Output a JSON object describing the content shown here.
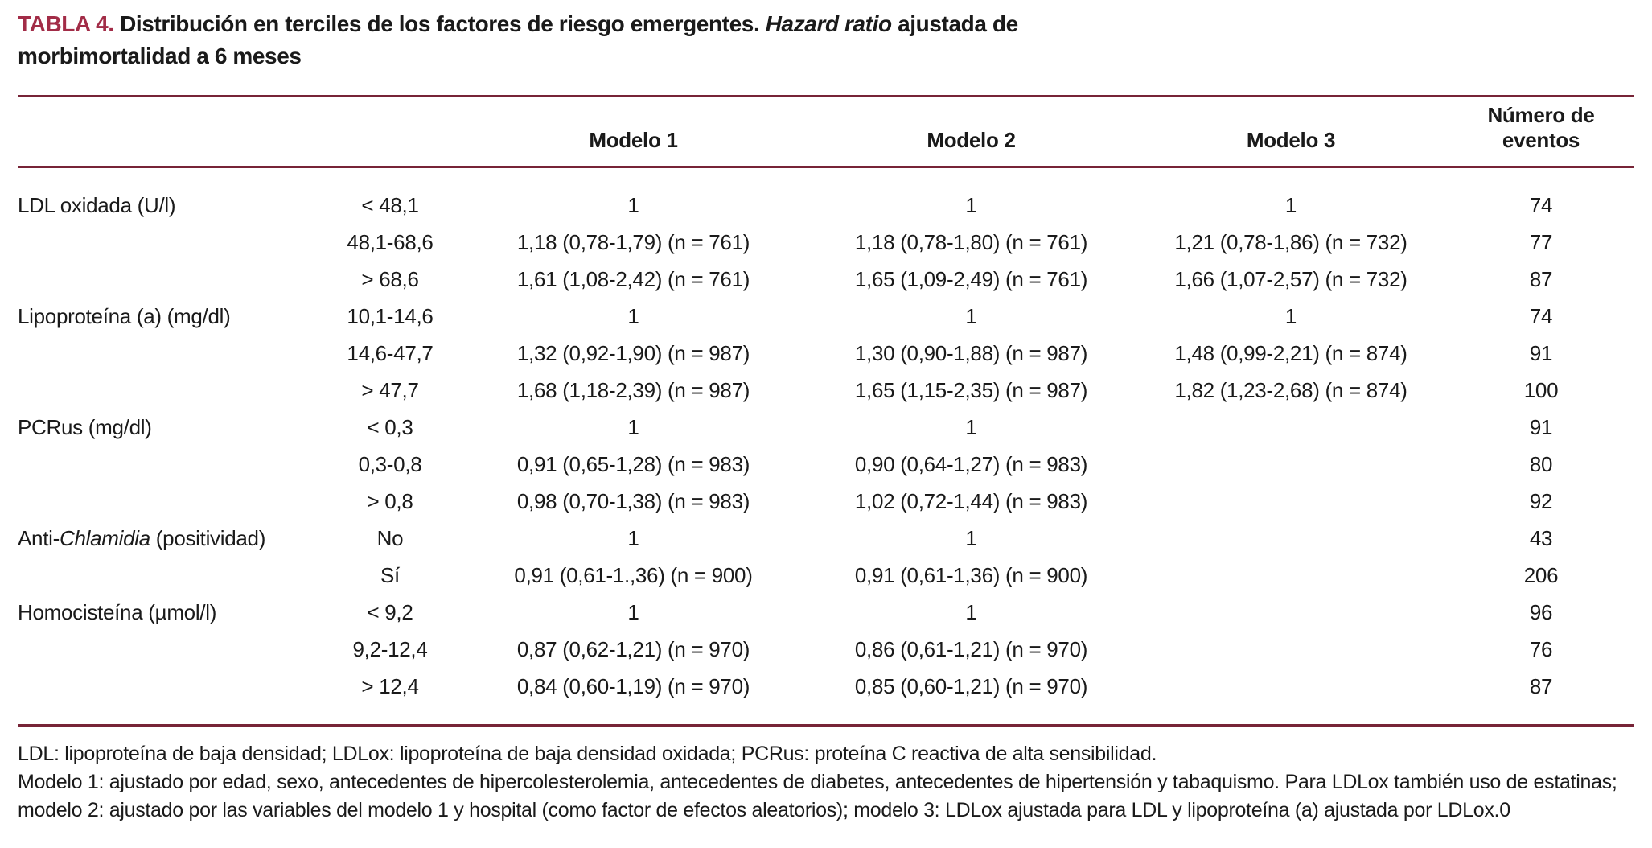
{
  "colors": {
    "accent_red": "#a22c47",
    "rule_red": "#772437"
  },
  "title": {
    "label": "TABLA 4.",
    "text_pre": " Distribución en terciles de los factores de riesgo emergentes. ",
    "text_italic": "Hazard ratio",
    "text_post": " ajustada de morbimortalidad a 6 meses"
  },
  "table": {
    "headers": {
      "factor": "",
      "tercile": "",
      "model1": "Modelo 1",
      "model2": "Modelo 2",
      "model3": "Modelo 3",
      "events": "Número de eventos"
    },
    "rows": [
      {
        "factor_pre": "LDL oxidada (U/l)",
        "factor_italic": "",
        "factor_post": "",
        "tercile": "< 48,1",
        "model1": "1",
        "model2": "1",
        "model3": "1",
        "events": "74"
      },
      {
        "factor_pre": "",
        "factor_italic": "",
        "factor_post": "",
        "tercile": "48,1-68,6",
        "model1": "1,18 (0,78-1,79) (n = 761)",
        "model2": "1,18 (0,78-1,80) (n = 761)",
        "model3": "1,21 (0,78-1,86) (n = 732)",
        "events": "77"
      },
      {
        "factor_pre": "",
        "factor_italic": "",
        "factor_post": "",
        "tercile": "> 68,6",
        "model1": "1,61 (1,08-2,42) (n = 761)",
        "model2": "1,65 (1,09-2,49) (n = 761)",
        "model3": "1,66 (1,07-2,57) (n = 732)",
        "events": "87"
      },
      {
        "factor_pre": "Lipoproteína (a) (mg/dl)",
        "factor_italic": "",
        "factor_post": "",
        "tercile": "10,1-14,6",
        "model1": "1",
        "model2": "1",
        "model3": "1",
        "events": "74"
      },
      {
        "factor_pre": "",
        "factor_italic": "",
        "factor_post": "",
        "tercile": "14,6-47,7",
        "model1": "1,32 (0,92-1,90) (n = 987)",
        "model2": "1,30 (0,90-1,88) (n = 987)",
        "model3": "1,48 (0,99-2,21) (n = 874)",
        "events": "91"
      },
      {
        "factor_pre": "",
        "factor_italic": "",
        "factor_post": "",
        "tercile": "> 47,7",
        "model1": "1,68 (1,18-2,39) (n = 987)",
        "model2": "1,65 (1,15-2,35) (n = 987)",
        "model3": "1,82 (1,23-2,68) (n = 874)",
        "events": "100"
      },
      {
        "factor_pre": "PCRus (mg/dl)",
        "factor_italic": "",
        "factor_post": "",
        "tercile": "< 0,3",
        "model1": "1",
        "model2": "1",
        "model3": "",
        "events": "91"
      },
      {
        "factor_pre": "",
        "factor_italic": "",
        "factor_post": "",
        "tercile": "0,3-0,8",
        "model1": "0,91 (0,65-1,28) (n = 983)",
        "model2": "0,90 (0,64-1,27) (n = 983)",
        "model3": "",
        "events": "80"
      },
      {
        "factor_pre": "",
        "factor_italic": "",
        "factor_post": "",
        "tercile": "> 0,8",
        "model1": "0,98 (0,70-1,38) (n = 983)",
        "model2": "1,02 (0,72-1,44) (n = 983)",
        "model3": "",
        "events": "92"
      },
      {
        "factor_pre": "Anti-",
        "factor_italic": "Chlamidia",
        "factor_post": " (positividad)",
        "tercile": "No",
        "model1": "1",
        "model2": "1",
        "model3": "",
        "events": "43"
      },
      {
        "factor_pre": "",
        "factor_italic": "",
        "factor_post": "",
        "tercile": "Sí",
        "model1": "0,91 (0,61-1.,36) (n = 900)",
        "model2": "0,91 (0,61-1,36) (n = 900)",
        "model3": "",
        "events": "206"
      },
      {
        "factor_pre": "Homocisteína (µmol/l)",
        "factor_italic": "",
        "factor_post": "",
        "tercile": "< 9,2",
        "model1": "1",
        "model2": "1",
        "model3": "",
        "events": "96"
      },
      {
        "factor_pre": "",
        "factor_italic": "",
        "factor_post": "",
        "tercile": "9,2-12,4",
        "model1": "0,87 (0,62-1,21) (n = 970)",
        "model2": "0,86 (0,61-1,21) (n = 970)",
        "model3": "",
        "events": "76"
      },
      {
        "factor_pre": "",
        "factor_italic": "",
        "factor_post": "",
        "tercile": "> 12,4",
        "model1": "0,84 (0,60-1,19) (n = 970)",
        "model2": "0,85 (0,60-1,21) (n = 970)",
        "model3": "",
        "events": "87"
      }
    ]
  },
  "footnotes": {
    "abbreviations": "LDL: lipoproteína de baja densidad; LDLox: lipoproteína de baja densidad oxidada; PCRus: proteína C reactiva de alta sensibilidad.",
    "models": "Modelo 1: ajustado por edad, sexo, antecedentes de hipercolesterolemia, antecedentes de diabetes, antecedentes de hipertensión y tabaquismo. Para LDLox también uso de estatinas; modelo 2: ajustado por las variables del modelo 1 y hospital (como factor de efectos aleatorios); modelo 3: LDLox ajustada para LDL y lipoproteína (a) ajustada por LDLox.0"
  }
}
